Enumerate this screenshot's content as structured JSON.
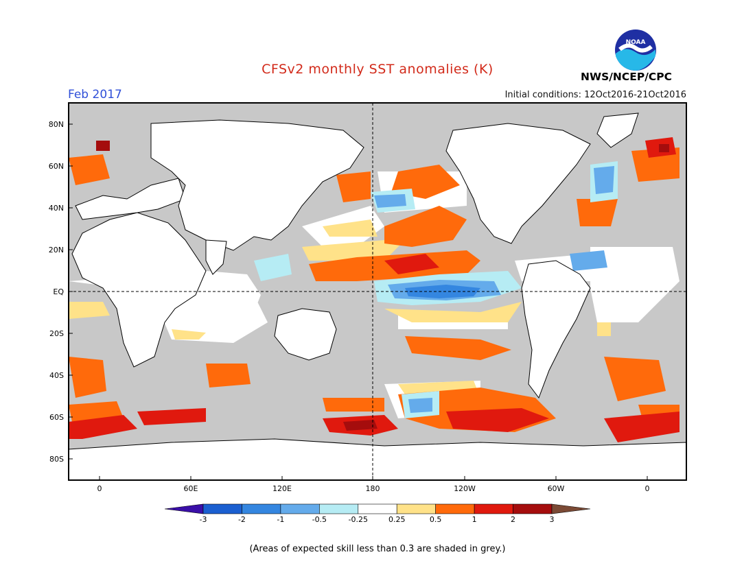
{
  "title": "CFSv2 monthly SST anomalies (K)",
  "valid_month": "Feb 2017",
  "initial_conditions": "Initial conditions: 12Oct2016-21Oct2016",
  "agency": "NWS/NCEP/CPC",
  "logo_text": "NOAA",
  "footnote": "(Areas of expected skill less than 0.3 are shaded in grey.)",
  "map": {
    "land_color": "#ffffff",
    "low_skill_color": "#c8c8c8",
    "grid_line": "dashed",
    "lat_labels": [
      "80N",
      "60N",
      "40N",
      "20N",
      "EQ",
      "20S",
      "40S",
      "60S",
      "80S"
    ],
    "lon_labels": [
      "0",
      "60E",
      "120E",
      "180",
      "120W",
      "60W",
      "0"
    ]
  },
  "colorbar": {
    "units": "K",
    "ticks": [
      "-3",
      "-2",
      "-1",
      "-0.5",
      "-0.25",
      "0.25",
      "0.5",
      "1",
      "2",
      "3"
    ],
    "colors": [
      "#3a0fa8",
      "#1b5fd0",
      "#3486e0",
      "#64abeb",
      "#b6ecf4",
      "#ffffff",
      "#ffe289",
      "#ff6a0b",
      "#e0190e",
      "#a50d0d",
      "#7b4a35"
    ]
  }
}
